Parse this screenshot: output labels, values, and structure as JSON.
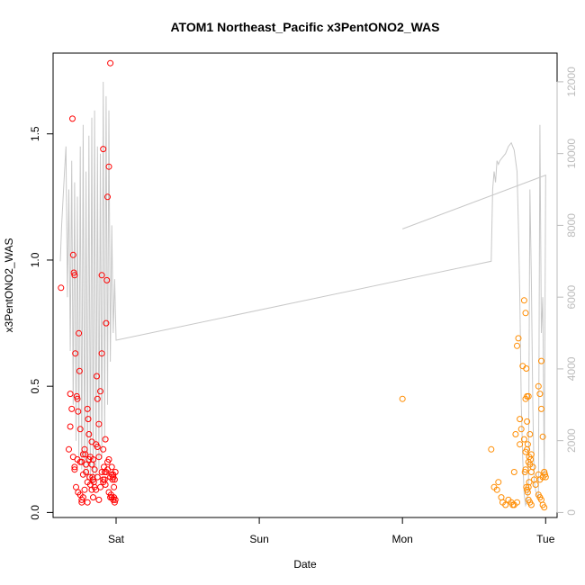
{
  "chart_data": {
    "type": "scatter",
    "title": "ATOM1 Northeast_Pacific x3PentONO2_WAS",
    "xlabel": "Date",
    "ylabel": "x3PentONO2_WAS",
    "x_unit": "days since Saturday 00:00",
    "xlim": [
      -0.44,
      3.08
    ],
    "ylim": [
      -0.02,
      1.82
    ],
    "y_ticks": [
      0.0,
      0.5,
      1.0,
      1.5
    ],
    "y_tick_labels": [
      "0.0",
      "0.5",
      "1.0",
      "1.5"
    ],
    "x_ticks": [
      0,
      1,
      2,
      3
    ],
    "x_tick_labels": [
      "Sat",
      "Sun",
      "Mon",
      "Tue"
    ],
    "y2lim": [
      -140,
      12800
    ],
    "y2_ticks": [
      0,
      2000,
      4000,
      6000,
      8000,
      10000,
      12000
    ],
    "y2_tick_labels": [
      "0",
      "2000",
      "4000",
      "6000",
      "8000",
      "10000",
      "12000"
    ],
    "grid": false,
    "legend": "none",
    "colors": {
      "series_a": "#ff0000",
      "series_b": "#ff8c00",
      "line": "#c8c8c8",
      "axis": "#000000",
      "right_axis": "#bbbbbb"
    },
    "series": [
      {
        "color": "#ff0000",
        "x": [
          -0.385,
          -0.32,
          -0.33,
          -0.305,
          -0.295,
          -0.3,
          -0.29,
          -0.285,
          -0.32,
          -0.31,
          -0.275,
          -0.27,
          -0.265,
          -0.26,
          -0.255,
          -0.25,
          -0.24,
          -0.23,
          -0.22,
          -0.215,
          -0.21,
          -0.2,
          -0.195,
          -0.19,
          -0.18,
          -0.17,
          -0.165,
          -0.16,
          -0.155,
          -0.15,
          -0.14,
          -0.135,
          -0.13,
          -0.12,
          -0.11,
          -0.1,
          -0.09,
          -0.085,
          -0.08,
          -0.075,
          -0.07,
          -0.065,
          -0.06,
          -0.05,
          -0.04,
          -0.03,
          -0.02,
          -0.015,
          -0.01,
          -0.005,
          -0.3,
          -0.29,
          -0.28,
          -0.265,
          -0.25,
          -0.24,
          -0.23,
          -0.22,
          -0.2,
          -0.185,
          -0.17,
          -0.16,
          -0.14,
          -0.13,
          -0.12,
          -0.1,
          -0.09,
          -0.08,
          -0.075,
          -0.06,
          -0.05,
          -0.04,
          -0.02,
          -0.01,
          -0.005,
          -0.29,
          -0.27,
          -0.25,
          -0.23,
          -0.21,
          -0.19,
          -0.18,
          -0.17,
          -0.15,
          -0.13,
          -0.11,
          -0.09,
          -0.07,
          -0.05,
          -0.03,
          -0.025,
          -0.015,
          -0.02,
          -0.2,
          -0.24,
          -0.16,
          -0.12,
          -0.04,
          -0.035,
          -0.03,
          -0.06,
          -0.09,
          -0.1
        ],
        "y": [
          0.89,
          0.34,
          0.25,
          1.56,
          0.95,
          1.02,
          0.94,
          0.63,
          0.47,
          0.41,
          0.46,
          0.45,
          0.4,
          0.71,
          0.56,
          0.33,
          0.2,
          0.15,
          0.25,
          0.23,
          0.19,
          0.41,
          0.37,
          0.31,
          0.22,
          0.28,
          0.14,
          0.13,
          0.12,
          0.1,
          0.09,
          0.54,
          0.45,
          0.35,
          0.48,
          0.63,
          0.25,
          0.18,
          0.16,
          0.29,
          0.75,
          0.92,
          1.25,
          1.37,
          1.78,
          0.18,
          0.14,
          0.06,
          0.04,
          0.05,
          0.22,
          0.18,
          0.1,
          0.08,
          0.07,
          0.04,
          0.06,
          0.09,
          0.12,
          0.14,
          0.19,
          0.21,
          0.27,
          0.26,
          0.22,
          0.16,
          0.13,
          0.13,
          0.11,
          0.2,
          0.21,
          0.14,
          0.15,
          0.13,
          0.16,
          0.17,
          0.21,
          0.2,
          0.23,
          0.16,
          0.21,
          0.11,
          0.09,
          0.17,
          0.14,
          0.1,
          0.12,
          0.16,
          0.08,
          0.15,
          0.13,
          0.1,
          0.05,
          0.04,
          0.05,
          0.06,
          0.05,
          0.06,
          0.07,
          0.06,
          0.17,
          1.44,
          0.94
        ]
      },
      {
        "color": "#ff8c00",
        "x": [
          2.0,
          2.62,
          2.64,
          2.66,
          2.67,
          2.69,
          2.7,
          2.72,
          2.74,
          2.76,
          2.77,
          2.78,
          2.79,
          2.8,
          2.81,
          2.82,
          2.83,
          2.84,
          2.85,
          2.86,
          2.87,
          2.88,
          2.89,
          2.9,
          2.91,
          2.92,
          2.93,
          2.95,
          2.96,
          2.97,
          2.98,
          2.99,
          2.995,
          3.0,
          2.86,
          2.865,
          2.87,
          2.875,
          2.88,
          2.885,
          2.89,
          2.895,
          2.9,
          2.87,
          2.86,
          2.855,
          2.875,
          2.88,
          2.885,
          2.95,
          2.96,
          2.97,
          2.98,
          2.99,
          2.97,
          2.96,
          2.95,
          2.98,
          2.99,
          2.87,
          2.88,
          2.89,
          2.9,
          2.865,
          2.86,
          2.85,
          2.82,
          2.8,
          2.78
        ],
        "y": [
          0.45,
          0.25,
          0.1,
          0.09,
          0.12,
          0.06,
          0.04,
          0.03,
          0.05,
          0.04,
          0.03,
          0.16,
          0.31,
          0.66,
          0.69,
          0.27,
          0.33,
          0.58,
          0.84,
          0.79,
          0.46,
          0.46,
          0.31,
          0.23,
          0.18,
          0.13,
          0.11,
          0.5,
          0.47,
          0.6,
          0.3,
          0.16,
          0.15,
          0.14,
          0.45,
          0.57,
          0.36,
          0.27,
          0.2,
          0.22,
          0.19,
          0.21,
          0.16,
          0.25,
          0.24,
          0.16,
          0.08,
          0.1,
          0.12,
          0.07,
          0.06,
          0.05,
          0.03,
          0.02,
          0.41,
          0.13,
          0.15,
          0.14,
          0.16,
          0.09,
          0.05,
          0.04,
          0.03,
          0.1,
          0.17,
          0.29,
          0.37,
          0.04,
          0.03
        ]
      }
    ],
    "line_series": {
      "color": "#c8c8c8",
      "axis": "right",
      "x": [
        -0.39,
        -0.38,
        -0.36,
        -0.35,
        -0.34,
        -0.33,
        -0.32,
        -0.31,
        -0.3,
        -0.29,
        -0.28,
        -0.27,
        -0.26,
        -0.25,
        -0.24,
        -0.23,
        -0.22,
        -0.21,
        -0.2,
        -0.19,
        -0.18,
        -0.17,
        -0.16,
        -0.15,
        -0.14,
        -0.13,
        -0.12,
        -0.11,
        -0.1,
        -0.09,
        -0.08,
        -0.07,
        -0.06,
        -0.05,
        -0.04,
        -0.03,
        -0.02,
        -0.01,
        0.0,
        2.62,
        2.63,
        2.64,
        2.65,
        2.66,
        2.67,
        2.68,
        2.7,
        2.72,
        2.74,
        2.76,
        2.78,
        2.8,
        2.81,
        2.82,
        2.83,
        2.84,
        2.85,
        2.86,
        2.87,
        2.88,
        2.89,
        2.9,
        2.91,
        2.92,
        2.93,
        2.94,
        2.95,
        2.96,
        2.97,
        2.98,
        2.99,
        3.0,
        2.0,
        3.0
      ],
      "y": [
        7000,
        8000,
        9500,
        10200,
        6000,
        9000,
        4500,
        9800,
        3000,
        9200,
        2000,
        8800,
        1500,
        10200,
        1200,
        10800,
        1000,
        9500,
        900,
        10500,
        800,
        11000,
        700,
        11200,
        1000,
        10200,
        1200,
        10000,
        1500,
        12000,
        2000,
        11600,
        3000,
        11200,
        4200,
        8000,
        5000,
        6500,
        4800,
        7000,
        9000,
        9500,
        9200,
        9800,
        9700,
        9800,
        9900,
        10000,
        10200,
        10300,
        10100,
        9500,
        8000,
        6000,
        3000,
        1500,
        500,
        200,
        300,
        800,
        9000,
        6500,
        3000,
        900,
        600,
        500,
        400,
        10800,
        5000,
        6000,
        1000,
        9400,
        7900,
        9400
      ]
    }
  }
}
